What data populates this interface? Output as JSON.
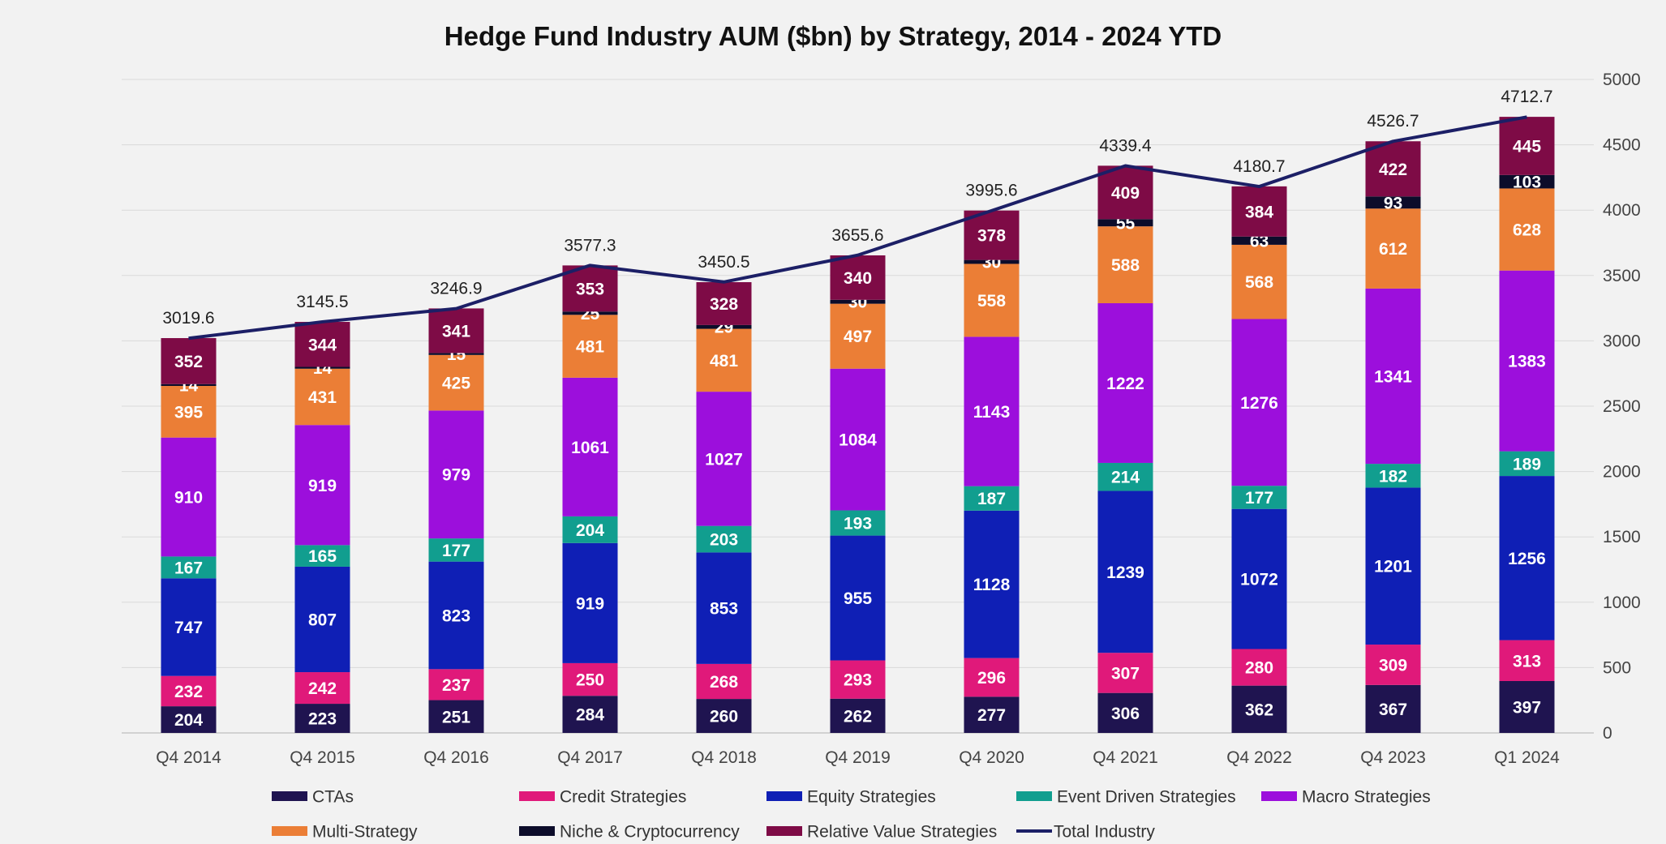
{
  "chart_data": {
    "type": "bar",
    "stacked": true,
    "title": "Hedge Fund Industry AUM ($bn) by Strategy, 2014 - 2024 YTD",
    "categories": [
      "Q4 2014",
      "Q4 2015",
      "Q4 2016",
      "Q4 2017",
      "Q4 2018",
      "Q4 2019",
      "Q4 2020",
      "Q4 2021",
      "Q4 2022",
      "Q4 2023",
      "Q1 2024"
    ],
    "y_axis": {
      "position": "right",
      "min": 0,
      "max": 5000,
      "step": 500,
      "ticks": [
        "0",
        "500",
        "1000",
        "1500",
        "2000",
        "2500",
        "3000",
        "3500",
        "4000",
        "4500",
        "5000"
      ]
    },
    "grid": true,
    "legend_position": "bottom",
    "series": [
      {
        "name": "CTAs",
        "color": "#1f1450",
        "values": [
          204,
          223,
          251,
          284,
          260,
          262,
          277,
          306,
          362,
          367,
          397
        ]
      },
      {
        "name": "Credit Strategies",
        "color": "#e0197a",
        "values": [
          232,
          242,
          237,
          250,
          268,
          293,
          296,
          307,
          280,
          309,
          313
        ]
      },
      {
        "name": "Equity Strategies",
        "color": "#0f1fb5",
        "values": [
          747,
          807,
          823,
          919,
          853,
          955,
          1128,
          1239,
          1072,
          1201,
          1256
        ]
      },
      {
        "name": "Event Driven Strategies",
        "color": "#119e8f",
        "values": [
          167,
          165,
          177,
          204,
          203,
          193,
          187,
          214,
          177,
          182,
          189
        ]
      },
      {
        "name": "Macro Strategies",
        "color": "#9c0fdc",
        "values": [
          910,
          919,
          979,
          1061,
          1027,
          1084,
          1143,
          1222,
          1276,
          1341,
          1383
        ]
      },
      {
        "name": "Multi-Strategy",
        "color": "#eb7e36",
        "values": [
          395,
          431,
          425,
          481,
          481,
          497,
          558,
          588,
          568,
          612,
          628
        ]
      },
      {
        "name": "Niche & Cryptocurrency",
        "color": "#0c0c2a",
        "values": [
          14,
          14,
          15,
          25,
          29,
          30,
          30,
          55,
          63,
          93,
          103
        ]
      },
      {
        "name": "Relative Value Strategies",
        "color": "#7e0b46",
        "values": [
          352,
          344,
          341,
          353,
          328,
          340,
          378,
          409,
          384,
          422,
          445
        ]
      }
    ],
    "total_line": {
      "name": "Total Industry",
      "color": "#1c1f66",
      "values": [
        3019.6,
        3145.5,
        3246.9,
        3577.3,
        3450.5,
        3655.6,
        3995.6,
        4339.4,
        4180.7,
        4526.7,
        4712.7
      ],
      "labels": [
        "3019.6",
        "3145.5",
        "3246.9",
        "3577.3",
        "3450.5",
        "3655.6",
        "3995.6",
        "4339.4",
        "4180.7",
        "4526.7",
        "4712.7"
      ]
    }
  }
}
